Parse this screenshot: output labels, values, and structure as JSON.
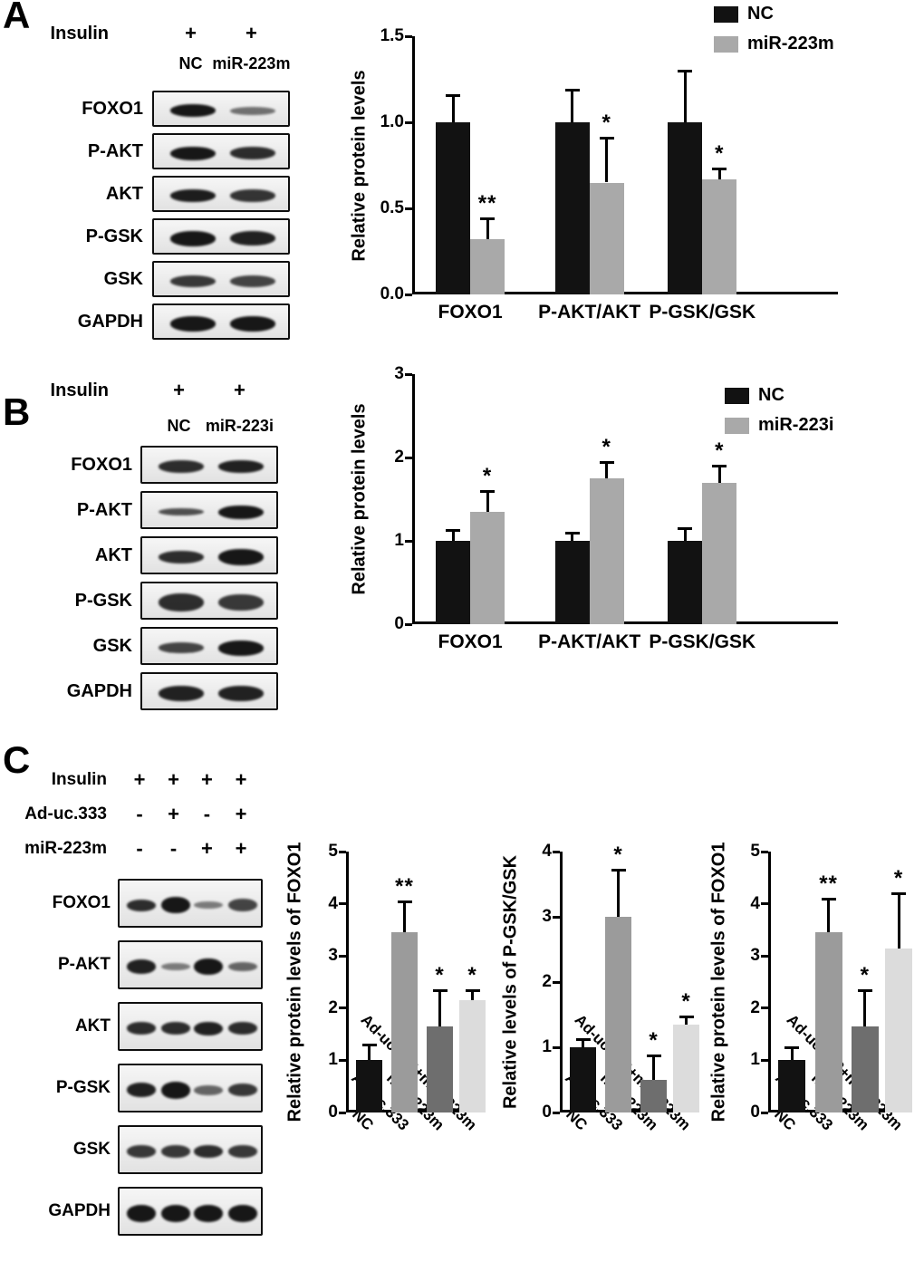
{
  "figure": {
    "panels": {
      "A": {
        "label": "A",
        "treatment_rows": [
          {
            "label": "Insulin",
            "marks": [
              "+",
              "+"
            ]
          }
        ],
        "lane_labels": [
          "NC",
          "miR-223m"
        ],
        "blot_rows": [
          {
            "label": "FOXO1",
            "intensities": [
              0.95,
              0.55
            ],
            "weights": [
              0.9,
              0.6
            ]
          },
          {
            "label": "P-AKT",
            "intensities": [
              0.95,
              0.85
            ],
            "weights": [
              1.0,
              0.95
            ]
          },
          {
            "label": "AKT",
            "intensities": [
              0.92,
              0.82
            ],
            "weights": [
              0.95,
              0.9
            ]
          },
          {
            "label": "P-GSK",
            "intensities": [
              0.95,
              0.9
            ],
            "weights": [
              1.15,
              1.05
            ]
          },
          {
            "label": "GSK",
            "intensities": [
              0.8,
              0.75
            ],
            "weights": [
              0.85,
              0.85
            ]
          },
          {
            "label": "GAPDH",
            "intensities": [
              0.95,
              0.95
            ],
            "weights": [
              1.15,
              1.15
            ]
          }
        ]
      },
      "B": {
        "label": "B",
        "treatment_rows": [
          {
            "label": "Insulin",
            "marks": [
              "+",
              "+"
            ]
          }
        ],
        "lane_labels": [
          "NC",
          "miR-223i"
        ],
        "blot_rows": [
          {
            "label": "FOXO1",
            "intensities": [
              0.85,
              0.9
            ],
            "weights": [
              0.9,
              0.95
            ]
          },
          {
            "label": "P-AKT",
            "intensities": [
              0.7,
              0.95
            ],
            "weights": [
              0.5,
              1.0
            ]
          },
          {
            "label": "AKT",
            "intensities": [
              0.85,
              0.95
            ],
            "weights": [
              0.9,
              1.2
            ]
          },
          {
            "label": "P-GSK",
            "intensities": [
              0.85,
              0.8
            ],
            "weights": [
              1.3,
              1.2
            ]
          },
          {
            "label": "GSK",
            "intensities": [
              0.75,
              0.95
            ],
            "weights": [
              0.8,
              1.1
            ]
          },
          {
            "label": "GAPDH",
            "intensities": [
              0.9,
              0.9
            ],
            "weights": [
              1.1,
              1.1
            ]
          }
        ]
      },
      "C": {
        "label": "C",
        "treatment_rows": [
          {
            "label": "Insulin",
            "marks": [
              "+",
              "+",
              "+",
              "+"
            ]
          },
          {
            "label": "Ad-uc.333",
            "marks": [
              "-",
              "+",
              "-",
              "+"
            ]
          },
          {
            "label": "miR-223m",
            "marks": [
              "-",
              "-",
              "+",
              "+"
            ]
          }
        ],
        "lane_labels": null,
        "blot_rows": [
          {
            "label": "FOXO1",
            "intensities": [
              0.85,
              0.95,
              0.5,
              0.75
            ],
            "weights": [
              0.8,
              1.1,
              0.5,
              0.9
            ]
          },
          {
            "label": "P-AKT",
            "intensities": [
              0.9,
              0.5,
              0.95,
              0.6
            ],
            "weights": [
              1.0,
              0.5,
              1.1,
              0.6
            ]
          },
          {
            "label": "AKT",
            "intensities": [
              0.85,
              0.85,
              0.9,
              0.85
            ],
            "weights": [
              0.9,
              0.9,
              0.95,
              0.9
            ]
          },
          {
            "label": "P-GSK",
            "intensities": [
              0.9,
              0.95,
              0.6,
              0.8
            ],
            "weights": [
              1.0,
              1.2,
              0.7,
              0.9
            ]
          },
          {
            "label": "GSK",
            "intensities": [
              0.8,
              0.8,
              0.85,
              0.8
            ],
            "weights": [
              0.85,
              0.85,
              0.9,
              0.85
            ]
          },
          {
            "label": "GAPDH",
            "intensities": [
              0.95,
              0.95,
              0.95,
              0.95
            ],
            "weights": [
              1.2,
              1.2,
              1.2,
              1.2
            ]
          }
        ]
      }
    }
  },
  "chart_data": [
    {
      "id": "chartA",
      "type": "bar",
      "ylabel": "Relative protein levels",
      "ylim": [
        0,
        1.5
      ],
      "yticks": [
        0,
        0.5,
        1.0,
        1.5
      ],
      "ytick_labels": [
        "0.0",
        "0.5",
        "1.0",
        "1.5"
      ],
      "categories": [
        "FOXO1",
        "P-AKT/AKT",
        "P-GSK/GSK"
      ],
      "series": [
        {
          "name": "NC",
          "color": "#121212",
          "values": [
            1.0,
            1.0,
            1.0
          ],
          "errors": [
            0.16,
            0.19,
            0.3
          ],
          "sig": [
            "",
            "",
            ""
          ]
        },
        {
          "name": "miR-223m",
          "color": "#a9a9a9",
          "values": [
            0.32,
            0.65,
            0.67
          ],
          "errors": [
            0.12,
            0.26,
            0.06
          ],
          "sig": [
            "**",
            "*",
            "*"
          ]
        }
      ],
      "legend": [
        {
          "label": "NC",
          "color": "#121212"
        },
        {
          "label": "miR-223m",
          "color": "#a9a9a9"
        }
      ],
      "legend_position": "top-right",
      "grid": false
    },
    {
      "id": "chartB",
      "type": "bar",
      "ylabel": "Relative protein levels",
      "ylim": [
        0,
        3
      ],
      "yticks": [
        0,
        1,
        2,
        3
      ],
      "ytick_labels": [
        "0",
        "1",
        "2",
        "3"
      ],
      "categories": [
        "FOXO1",
        "P-AKT/AKT",
        "P-GSK/GSK"
      ],
      "series": [
        {
          "name": "NC",
          "color": "#121212",
          "values": [
            1.0,
            1.0,
            1.0
          ],
          "errors": [
            0.13,
            0.1,
            0.15
          ],
          "sig": [
            "",
            "",
            ""
          ]
        },
        {
          "name": "miR-223i",
          "color": "#a9a9a9",
          "values": [
            1.35,
            1.75,
            1.7
          ],
          "errors": [
            0.25,
            0.2,
            0.2
          ],
          "sig": [
            "*",
            "*",
            "*"
          ]
        }
      ],
      "legend": [
        {
          "label": "NC",
          "color": "#121212"
        },
        {
          "label": "miR-223i",
          "color": "#a9a9a9"
        }
      ],
      "legend_position": "top-right",
      "grid": false
    },
    {
      "id": "chartC1",
      "type": "bar",
      "ylabel": "Relative protein levels of FOXO1",
      "ylim": [
        0,
        5
      ],
      "yticks": [
        0,
        1,
        2,
        3,
        4,
        5
      ],
      "ytick_labels": [
        "0",
        "1",
        "2",
        "3",
        "4",
        "5"
      ],
      "categories": [
        "NC",
        "Ad-uc.333",
        "miR-223m",
        "Ad-uc.333+miR-223m"
      ],
      "values": [
        1.0,
        3.45,
        1.65,
        2.15
      ],
      "errors": [
        0.3,
        0.6,
        0.7,
        0.2
      ],
      "sig": [
        "",
        "**",
        "*",
        "*"
      ],
      "colors": [
        "#121212",
        "#9b9b9b",
        "#6e6e6e",
        "#dcdcdc"
      ],
      "grid": false
    },
    {
      "id": "chartC2",
      "type": "bar",
      "ylabel": "Relative levels of P-GSK/GSK",
      "ylim": [
        0,
        4
      ],
      "yticks": [
        0,
        1,
        2,
        3,
        4
      ],
      "ytick_labels": [
        "0",
        "1",
        "2",
        "3",
        "4"
      ],
      "categories": [
        "NC",
        "Ad-uc.333",
        "miR-223m",
        "Ad-uc.333+miR-223m"
      ],
      "values": [
        1.0,
        3.0,
        0.5,
        1.35
      ],
      "errors": [
        0.12,
        0.72,
        0.38,
        0.12
      ],
      "sig": [
        "",
        "*",
        "*",
        "*"
      ],
      "colors": [
        "#121212",
        "#9b9b9b",
        "#6e6e6e",
        "#dcdcdc"
      ],
      "grid": false
    },
    {
      "id": "chartC3",
      "type": "bar",
      "ylabel": "Relative protein levels of FOXO1",
      "ylim": [
        0,
        5
      ],
      "yticks": [
        0,
        1,
        2,
        3,
        4,
        5
      ],
      "ytick_labels": [
        "0",
        "1",
        "2",
        "3",
        "4",
        "5"
      ],
      "categories": [
        "NC",
        "Ad-uc.333",
        "miR-223m",
        "Ad-uc.333+miR-223m"
      ],
      "values": [
        1.0,
        3.45,
        1.65,
        3.15
      ],
      "errors": [
        0.25,
        0.65,
        0.7,
        1.05
      ],
      "sig": [
        "",
        "**",
        "*",
        "*"
      ],
      "colors": [
        "#121212",
        "#9b9b9b",
        "#6e6e6e",
        "#dcdcdc"
      ],
      "grid": false
    }
  ]
}
